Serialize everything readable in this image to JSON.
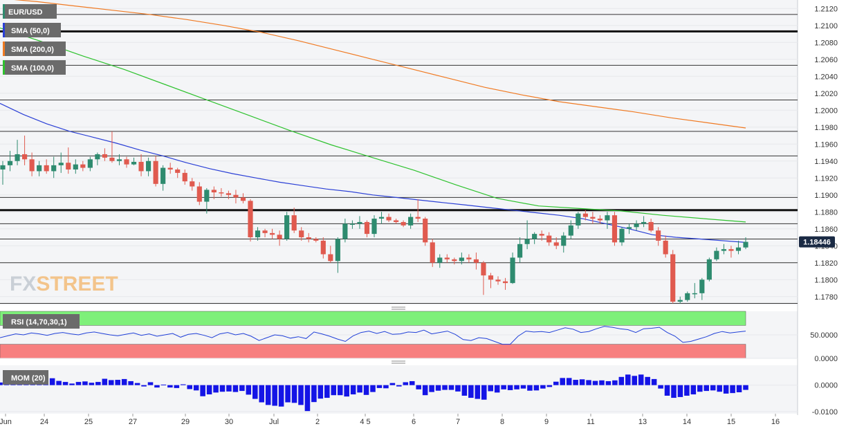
{
  "chart_data": [
    {
      "type": "candlestick",
      "symbol": "EUR/USD",
      "indicators": [
        {
          "name": "SMA (50,0)",
          "color": "#2a3fd6"
        },
        {
          "name": "SMA (200,0)",
          "color": "#f07a22"
        },
        {
          "name": "SMA (100,0)",
          "color": "#2ec22e"
        }
      ],
      "ylim": [
        1.177,
        1.213
      ],
      "y_ticks": [
        "1.2120",
        "1.2100",
        "1.2080",
        "1.2060",
        "1.2040",
        "1.2020",
        "1.2000",
        "1.1980",
        "1.1960",
        "1.1940",
        "1.1920",
        "1.1900",
        "1.1880",
        "1.1860",
        "1.1840",
        "1.1820",
        "1.1800",
        "1.1780"
      ],
      "last_price": "1.18446",
      "last_price_value": 1.18446,
      "x_labels": [
        "Jun",
        "24",
        "25",
        "27",
        "29",
        "30",
        "Jul",
        "2",
        "4 5",
        "6",
        "7",
        "8",
        "9",
        "11",
        "13",
        "14",
        "15",
        "16"
      ],
      "horizontal_levels": [
        {
          "value": 1.2113,
          "emphasis": false
        },
        {
          "value": 1.2093,
          "emphasis": true
        },
        {
          "value": 1.2053,
          "emphasis": false
        },
        {
          "value": 1.2012,
          "emphasis": false
        },
        {
          "value": 1.1975,
          "emphasis": false
        },
        {
          "value": 1.1946,
          "emphasis": false
        },
        {
          "value": 1.1897,
          "emphasis": false
        },
        {
          "value": 1.1882,
          "emphasis": true
        },
        {
          "value": 1.1866,
          "emphasis": false
        },
        {
          "value": 1.1848,
          "emphasis": false
        },
        {
          "value": 1.182,
          "emphasis": false
        },
        {
          "value": 1.1772,
          "emphasis": false
        }
      ],
      "candles_ohlc": [
        [
          1.193,
          1.194,
          1.1912,
          1.1935
        ],
        [
          1.1935,
          1.1952,
          1.1928,
          1.194
        ],
        [
          1.194,
          1.1965,
          1.1935,
          1.1948
        ],
        [
          1.1948,
          1.197,
          1.1935,
          1.1942
        ],
        [
          1.1942,
          1.195,
          1.1922,
          1.1928
        ],
        [
          1.1928,
          1.194,
          1.1922,
          1.1935
        ],
        [
          1.1935,
          1.1942,
          1.1925,
          1.1928
        ],
        [
          1.1928,
          1.1945,
          1.192,
          1.1935
        ],
        [
          1.1935,
          1.195,
          1.1926,
          1.1938
        ],
        [
          1.1938,
          1.1956,
          1.1925,
          1.193
        ],
        [
          1.193,
          1.1942,
          1.1925,
          1.1936
        ],
        [
          1.1936,
          1.194,
          1.1928,
          1.1932
        ],
        [
          1.1932,
          1.1945,
          1.1928,
          1.1942
        ],
        [
          1.1942,
          1.195,
          1.1935,
          1.1948
        ],
        [
          1.1948,
          1.1955,
          1.194,
          1.1944
        ],
        [
          1.1944,
          1.1975,
          1.1938,
          1.194
        ],
        [
          1.194,
          1.1948,
          1.1935,
          1.1942
        ],
        [
          1.1942,
          1.1945,
          1.1932,
          1.1936
        ],
        [
          1.1936,
          1.1944,
          1.1935,
          1.1939
        ],
        [
          1.1939,
          1.1948,
          1.1922,
          1.1928
        ],
        [
          1.1928,
          1.1944,
          1.1922,
          1.194
        ],
        [
          1.194,
          1.1946,
          1.191,
          1.1913
        ],
        [
          1.1913,
          1.1935,
          1.1905,
          1.1932
        ],
        [
          1.1932,
          1.1938,
          1.1925,
          1.193
        ],
        [
          1.193,
          1.1932,
          1.192,
          1.1926
        ],
        [
          1.1926,
          1.193,
          1.1912,
          1.1916
        ],
        [
          1.1916,
          1.192,
          1.1905,
          1.191
        ],
        [
          1.191,
          1.1915,
          1.1888,
          1.1892
        ],
        [
          1.1892,
          1.1908,
          1.1878,
          1.1906
        ],
        [
          1.1906,
          1.191,
          1.1895,
          1.1903
        ],
        [
          1.1903,
          1.1908,
          1.1898,
          1.1902
        ],
        [
          1.1902,
          1.1905,
          1.1895,
          1.19
        ],
        [
          1.19,
          1.1906,
          1.189,
          1.1897
        ],
        [
          1.1897,
          1.1902,
          1.189,
          1.1893
        ],
        [
          1.1893,
          1.1895,
          1.1845,
          1.185
        ],
        [
          1.185,
          1.1862,
          1.1846,
          1.1858
        ],
        [
          1.1858,
          1.186,
          1.185,
          1.1855
        ],
        [
          1.1855,
          1.186,
          1.1848,
          1.1853
        ],
        [
          1.1853,
          1.1858,
          1.184,
          1.1848
        ],
        [
          1.1848,
          1.188,
          1.1846,
          1.1876
        ],
        [
          1.1876,
          1.1885,
          1.1855,
          1.1858
        ],
        [
          1.1858,
          1.1862,
          1.1846,
          1.185
        ],
        [
          1.185,
          1.1855,
          1.1844,
          1.1848
        ],
        [
          1.1848,
          1.185,
          1.1844,
          1.1846
        ],
        [
          1.1846,
          1.185,
          1.1825,
          1.183
        ],
        [
          1.183,
          1.184,
          1.182,
          1.1822
        ],
        [
          1.1822,
          1.185,
          1.1808,
          1.1848
        ],
        [
          1.1848,
          1.1872,
          1.1844,
          1.1866
        ],
        [
          1.1866,
          1.187,
          1.186,
          1.1866
        ],
        [
          1.1866,
          1.1875,
          1.186,
          1.1868
        ],
        [
          1.1868,
          1.187,
          1.185,
          1.1854
        ],
        [
          1.1854,
          1.1876,
          1.185,
          1.1872
        ],
        [
          1.1872,
          1.188,
          1.1866,
          1.1874
        ],
        [
          1.1874,
          1.1878,
          1.1868,
          1.187
        ],
        [
          1.187,
          1.1872,
          1.1866,
          1.1868
        ],
        [
          1.1868,
          1.187,
          1.1862,
          1.1864
        ],
        [
          1.1864,
          1.1878,
          1.186,
          1.1874
        ],
        [
          1.1874,
          1.1895,
          1.1868,
          1.1872
        ],
        [
          1.1872,
          1.1874,
          1.184,
          1.1844
        ],
        [
          1.1844,
          1.1848,
          1.1815,
          1.182
        ],
        [
          1.182,
          1.183,
          1.1814,
          1.1826
        ],
        [
          1.1826,
          1.183,
          1.182,
          1.1824
        ],
        [
          1.1824,
          1.1826,
          1.1818,
          1.1822
        ],
        [
          1.1822,
          1.1832,
          1.1818,
          1.1826
        ],
        [
          1.1826,
          1.183,
          1.182,
          1.1824
        ],
        [
          1.1824,
          1.1832,
          1.1812,
          1.182
        ],
        [
          1.182,
          1.1822,
          1.1782,
          1.1805
        ],
        [
          1.1805,
          1.1808,
          1.179,
          1.18
        ],
        [
          1.18,
          1.1804,
          1.1794,
          1.1798
        ],
        [
          1.1798,
          1.1802,
          1.1788,
          1.1796
        ],
        [
          1.1796,
          1.1832,
          1.1795,
          1.1826
        ],
        [
          1.1826,
          1.185,
          1.182,
          1.1842
        ],
        [
          1.1842,
          1.187,
          1.1836,
          1.1848
        ],
        [
          1.1848,
          1.1856,
          1.1842,
          1.1854
        ],
        [
          1.1854,
          1.1858,
          1.1846,
          1.1852
        ],
        [
          1.1852,
          1.1856,
          1.184,
          1.1844
        ],
        [
          1.1844,
          1.185,
          1.1836,
          1.184
        ],
        [
          1.184,
          1.1856,
          1.1832,
          1.1852
        ],
        [
          1.1852,
          1.187,
          1.1848,
          1.1864
        ],
        [
          1.1864,
          1.188,
          1.186,
          1.1878
        ],
        [
          1.1878,
          1.1882,
          1.187,
          1.1874
        ],
        [
          1.1874,
          1.188,
          1.1866,
          1.1872
        ],
        [
          1.1872,
          1.1876,
          1.1866,
          1.187
        ],
        [
          1.187,
          1.188,
          1.186,
          1.1876
        ],
        [
          1.1876,
          1.188,
          1.184,
          1.1844
        ],
        [
          1.1844,
          1.1862,
          1.184,
          1.186
        ],
        [
          1.186,
          1.1866,
          1.1854,
          1.1862
        ],
        [
          1.1862,
          1.187,
          1.1858,
          1.1866
        ],
        [
          1.1866,
          1.1875,
          1.1862,
          1.1868
        ],
        [
          1.1868,
          1.1872,
          1.1856,
          1.1858
        ],
        [
          1.1858,
          1.1862,
          1.184,
          1.1846
        ],
        [
          1.1846,
          1.1852,
          1.1826,
          1.183
        ],
        [
          1.183,
          1.1835,
          1.1772,
          1.1774
        ],
        [
          1.1774,
          1.178,
          1.1772,
          1.1776
        ],
        [
          1.1776,
          1.1786,
          1.1774,
          1.1784
        ],
        [
          1.1784,
          1.1796,
          1.1778,
          1.1784
        ],
        [
          1.1784,
          1.1802,
          1.1776,
          1.18
        ],
        [
          1.18,
          1.1826,
          1.1798,
          1.1824
        ],
        [
          1.1824,
          1.1838,
          1.1822,
          1.1834
        ],
        [
          1.1834,
          1.1842,
          1.183,
          1.1836
        ],
        [
          1.1836,
          1.184,
          1.1826,
          1.1834
        ],
        [
          1.1834,
          1.1846,
          1.183,
          1.1838
        ],
        [
          1.1838,
          1.185,
          1.1836,
          1.18446
        ]
      ],
      "sma50": [
        1.2008,
        1.1995,
        1.1984,
        1.1975,
        1.1968,
        1.1961,
        1.1953,
        1.1946,
        1.1938,
        1.1931,
        1.1925,
        1.192,
        1.1915,
        1.1911,
        1.1907,
        1.1904,
        1.19,
        1.1897,
        1.1894,
        1.1891,
        1.1888,
        1.1885,
        1.1882,
        1.1879,
        1.1876,
        1.1872,
        1.1866,
        1.186,
        1.1853,
        1.185,
        1.1848,
        1.1846,
        1.1844
      ],
      "sma200": [
        1.2132,
        1.2128,
        1.2123,
        1.2118,
        1.2113,
        1.2107,
        1.21,
        1.2092,
        1.2082,
        1.2071,
        1.206,
        1.2049,
        1.2038,
        1.2027,
        1.2018,
        1.201,
        1.2004,
        1.1998,
        1.1991,
        1.1985,
        1.1979
      ],
      "sma100": [
        1.2097,
        1.2081,
        1.2064,
        1.2048,
        1.203,
        1.2012,
        1.1994,
        1.1976,
        1.1959,
        1.1944,
        1.1929,
        1.1912,
        1.1896,
        1.1887,
        1.1884,
        1.1881,
        1.1876,
        1.1872,
        1.1868
      ]
    },
    {
      "type": "line",
      "name": "RSI (14,70,30,1)",
      "ylim": [
        0,
        100
      ],
      "y_ticks": [
        "50.0000",
        "0.0000"
      ],
      "overbought": 70,
      "oversold": 30,
      "values": [
        44,
        48,
        52,
        50,
        54,
        52,
        49,
        53,
        55,
        52,
        50,
        54,
        56,
        53,
        50,
        48,
        51,
        54,
        49,
        52,
        47,
        50,
        53,
        45,
        51,
        53,
        49,
        44,
        52,
        55,
        50,
        53,
        47,
        38,
        44,
        50,
        48,
        43,
        46,
        42,
        56,
        52,
        47,
        41,
        36,
        48,
        55,
        58,
        53,
        57,
        51,
        52,
        56,
        55,
        60,
        52,
        55,
        58,
        51,
        40,
        38,
        44,
        42,
        36,
        30,
        30,
        47,
        58,
        56,
        57,
        55,
        60,
        65,
        62,
        55,
        57,
        63,
        68,
        66,
        63,
        61,
        55,
        63,
        64,
        66,
        55,
        47,
        34,
        36,
        41,
        46,
        53,
        57,
        54,
        56,
        58
      ]
    },
    {
      "type": "bar",
      "name": "MOM (20)",
      "ylim": [
        -0.0108,
        0.0075
      ],
      "y_ticks": [
        "0.0000",
        "-0.0100"
      ],
      "values": [
        0.001,
        0.0018,
        0.002,
        0.0019,
        0.0017,
        0.0024,
        0.0028,
        0.0035,
        0.0026,
        0.0016,
        0.0012,
        0.0006,
        0.0012,
        0.0014,
        0.0009,
        0.0012,
        0.0024,
        0.0019,
        0.002,
        0.0023,
        0.0015,
        0.0008,
        -0.0005,
        0.0011,
        -0.0009,
        0.0002,
        -0.0009,
        -0.0011,
        0.0003,
        -0.0015,
        -0.002,
        -0.0042,
        -0.0035,
        -0.0028,
        -0.0025,
        -0.0024,
        -0.0026,
        -0.0022,
        -0.0036,
        -0.0052,
        -0.0065,
        -0.0075,
        -0.0078,
        -0.0081,
        -0.0065,
        -0.0067,
        -0.0075,
        -0.0098,
        -0.0064,
        -0.0051,
        -0.0048,
        -0.0038,
        -0.0038,
        -0.0043,
        -0.0035,
        -0.0028,
        -0.0037,
        -0.0026,
        -0.0011,
        -0.0012,
        0.0008,
        -0.0005,
        0.0011,
        0.0015,
        -0.0016,
        -0.0038,
        -0.0026,
        -0.0021,
        -0.0018,
        -0.0018,
        -0.0024,
        -0.004,
        -0.0048,
        -0.0052,
        -0.0055,
        -0.0023,
        -0.0028,
        -0.0016,
        -0.0019,
        -0.0016,
        -0.0013,
        -0.0021,
        -0.002,
        -0.0013,
        -0.0007,
        0.0013,
        0.0027,
        0.0027,
        0.002,
        0.0022,
        0.0019,
        0.0016,
        0.0018,
        0.0015,
        0.0018,
        0.0031,
        0.004,
        0.0035,
        0.004,
        0.0031,
        0.0023,
        -0.0013,
        -0.004,
        -0.0048,
        -0.0045,
        -0.004,
        -0.0035,
        -0.0025,
        -0.0022,
        -0.002,
        -0.0025,
        -0.0032,
        -0.003,
        -0.0027,
        -0.0018
      ]
    }
  ],
  "watermark": {
    "part1": "FX",
    "part2": "STREET"
  },
  "colors": {
    "bull": "#2e8b6f",
    "bear": "#e05a4f",
    "rsi_overbought": "#7ef07a",
    "rsi_oversold": "#f77f7f",
    "rsi_line": "#1f3fd8",
    "mom_bar": "#1414e6",
    "price_tag": "#1a2a44",
    "watermark_fx": "#c9cfd6",
    "watermark_street": "#f3c48b"
  }
}
